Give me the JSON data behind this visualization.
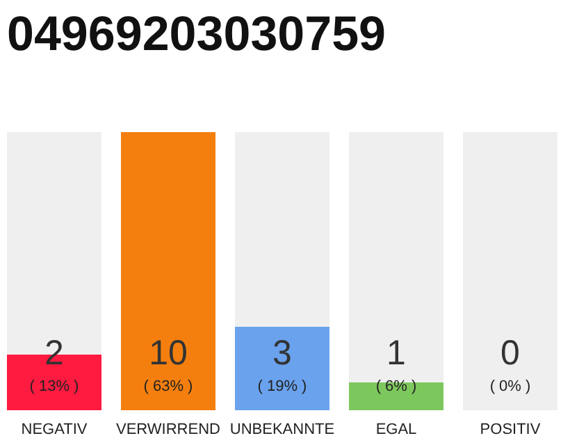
{
  "chart_data": {
    "type": "bar",
    "title": "04969203030759",
    "categories": [
      "NEGATIV",
      "VERWIRREND",
      "UNBEKANNTE",
      "EGAL",
      "POSITIV"
    ],
    "stacked": true,
    "series": [
      {
        "colors": [
          "#ff1a40",
          "#f47f0e",
          "#6aa2ee",
          "#7dc85c",
          "#9e9e9e"
        ],
        "values": [
          2,
          10,
          3,
          1,
          0
        ],
        "value_labels": [
          "2",
          "10",
          "3",
          "1",
          null
        ]
      },
      {
        "color": "#efefef",
        "values": [
          8,
          0,
          7,
          9,
          10
        ]
      }
    ],
    "ylim": [
      0,
      10
    ],
    "annotations": [
      "( 13% )",
      "( 63% )",
      "( 19% )",
      "( 6% )",
      "( 0% )",
      "0"
    ]
  }
}
